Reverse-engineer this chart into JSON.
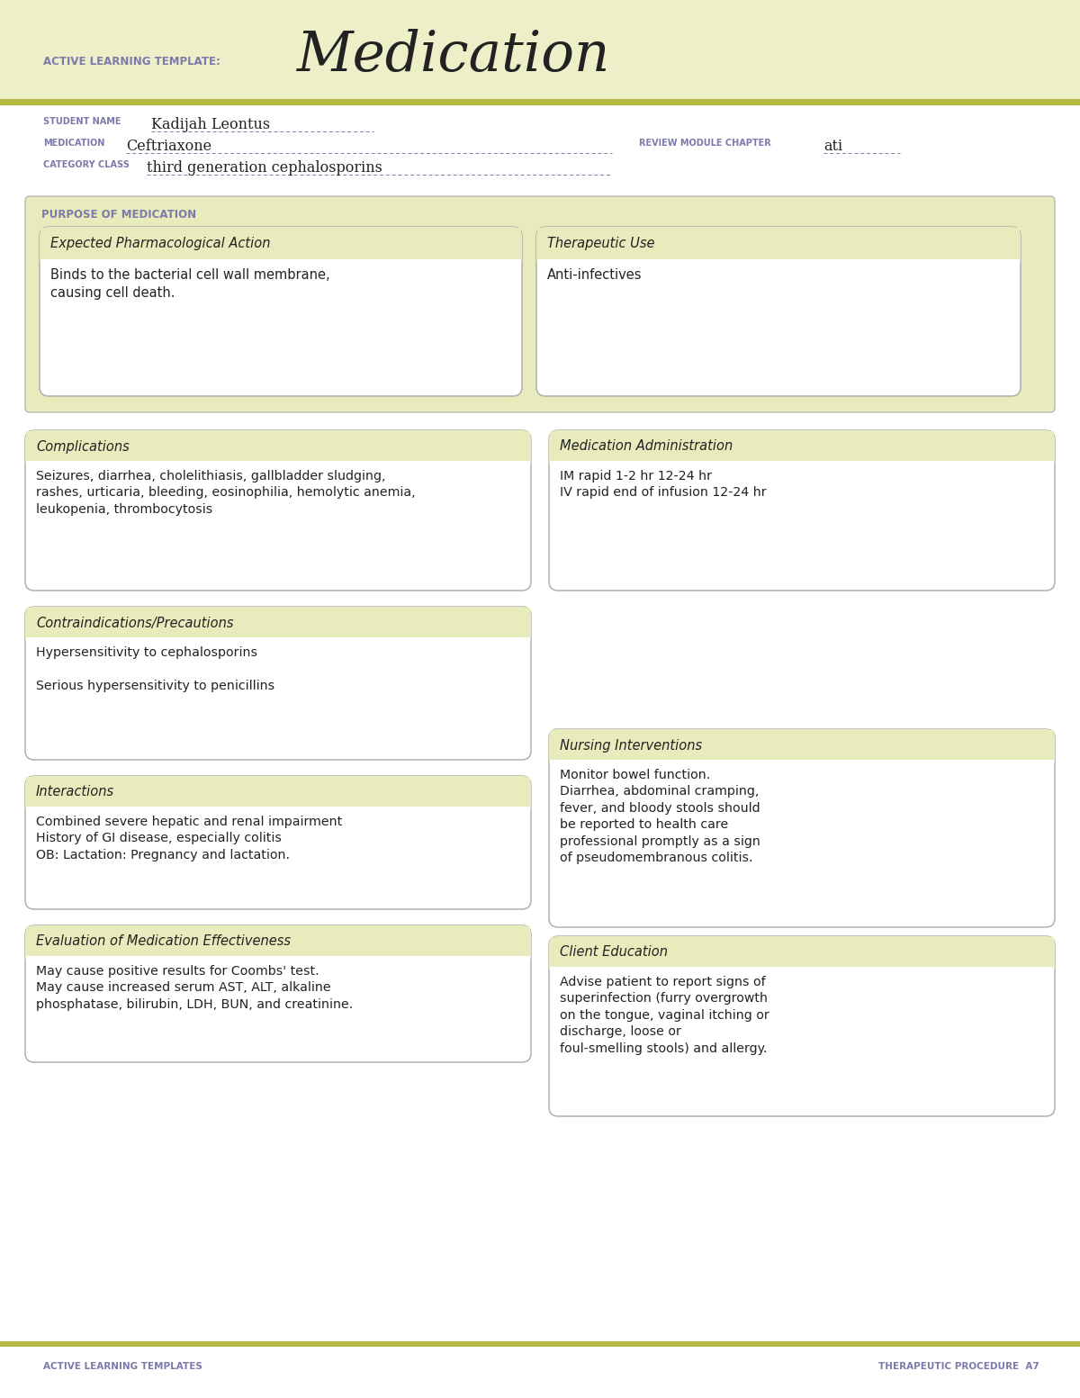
{
  "page_bg": "#ffffff",
  "header_bg": "#ecefc8",
  "olive_line": "#b5b842",
  "box_border": "#aaaaaa",
  "box_header_bg": "#e8ebbb",
  "purple_label": "#7b7aaa",
  "dark_text": "#222222",
  "title_label": "ACTIVE LEARNING TEMPLATE:",
  "title_main": "Medication",
  "student_label": "STUDENT NAME",
  "student_name": "Kadijah Leontus",
  "medication_label": "MEDICATION",
  "medication_name": "Ceftriaxone",
  "review_label": "REVIEW MODULE CHAPTER",
  "review_value": "ati",
  "category_label": "CATEGORY CLASS",
  "category_value": "third generation cephalosporins",
  "purpose_label": "PURPOSE OF MEDICATION",
  "box1_title": "Expected Pharmacological Action",
  "box1_body": "Binds to the bacterial cell wall membrane,\ncausing cell death.",
  "box2_title": "Therapeutic Use",
  "box2_body": "Anti-infectives",
  "box3_title": "Complications",
  "box3_body": "Seizures, diarrhea, cholelithiasis, gallbladder sludging,\nrashes, urticaria, bleeding, eosinophilia, hemolytic anemia,\nleukopenia, thrombocytosis",
  "box4_title": "Medication Administration",
  "box4_body": "IM rapid 1-2 hr 12-24 hr\nIV rapid end of infusion 12-24 hr",
  "box5_title": "Contraindications/Precautions",
  "box5_body": "Hypersensitivity to cephalosporins\n\nSerious hypersensitivity to penicillins",
  "box6_title": "Nursing Interventions",
  "box6_body": "Monitor bowel function.\nDiarrhea, abdominal cramping,\nfever, and bloody stools should\nbe reported to health care\nprofessional promptly as a sign\nof pseudomembranous colitis.",
  "box7_title": "Interactions",
  "box7_body": "Combined severe hepatic and renal impairment\nHistory of GI disease, especially colitis\nOB: Lactation: Pregnancy and lactation.",
  "box8_title": "Client Education",
  "box8_body": "Advise patient to report signs of\nsuperinfection (furry overgrowth\non the tongue, vaginal itching or\ndischarge, loose or\nfoul-smelling stools) and allergy.",
  "box9_title": "Evaluation of Medication Effectiveness",
  "box9_body": "May cause positive results for Coombs' test.\nMay cause increased serum AST, ALT, alkaline\nphosphatase, bilirubin, LDH, BUN, and creatinine.",
  "footer_left": "ACTIVE LEARNING TEMPLATES",
  "footer_right": "THERAPEUTIC PROCEDURE  A7"
}
